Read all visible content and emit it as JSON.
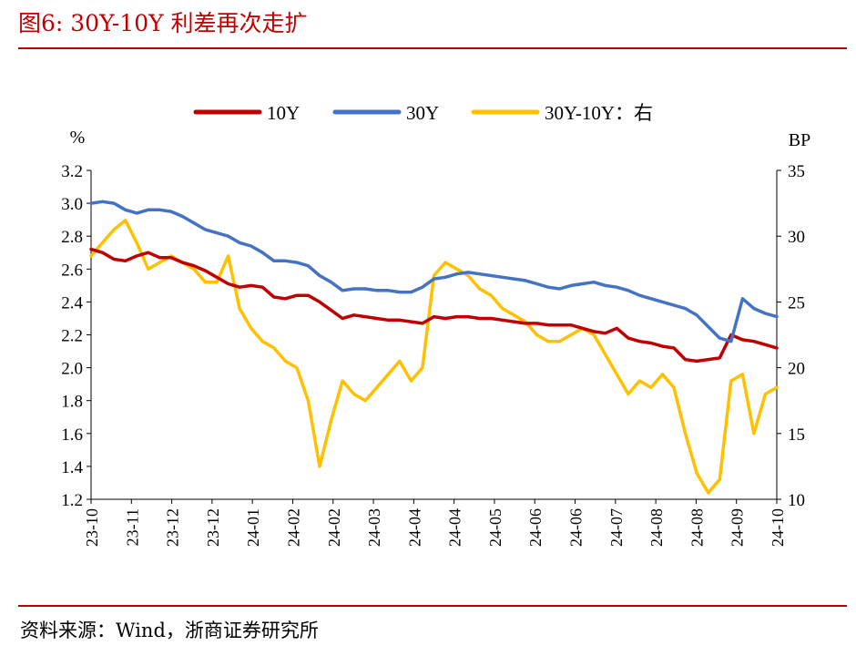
{
  "header": {
    "title": "图6:   30Y-10Y 利差再次走扩"
  },
  "footer": {
    "source": "资料来源：Wind，浙商证券研究所"
  },
  "chart_data": {
    "type": "line",
    "left_unit": "%",
    "right_unit": "BP",
    "legend": [
      "10Y",
      "30Y",
      "30Y-10Y：右"
    ],
    "legend_position": "top",
    "colors": {
      "10Y": "#c00000",
      "30Y": "#4472c4",
      "spread": "#ffc000",
      "accent": "#c00000"
    },
    "x_tick_labels": [
      "23-10",
      "23-11",
      "23-12",
      "23-12",
      "24-01",
      "24-02",
      "24-02",
      "24-03",
      "24-04",
      "24-04",
      "24-05",
      "24-06",
      "24-06",
      "24-07",
      "24-08",
      "24-08",
      "24-09",
      "24-10"
    ],
    "y_left": {
      "min": 1.2,
      "max": 3.2,
      "ticks": [
        "1.2",
        "1.4",
        "1.6",
        "1.8",
        "2.0",
        "2.2",
        "2.4",
        "2.6",
        "2.8",
        "3.0",
        "3.2"
      ]
    },
    "y_right": {
      "min": 10,
      "max": 35,
      "ticks": [
        "10",
        "15",
        "20",
        "25",
        "30",
        "35"
      ]
    },
    "grid": false,
    "series": [
      {
        "name": "10Y",
        "axis": "left",
        "values": [
          2.72,
          2.7,
          2.66,
          2.65,
          2.68,
          2.7,
          2.67,
          2.67,
          2.64,
          2.62,
          2.59,
          2.55,
          2.51,
          2.49,
          2.5,
          2.49,
          2.43,
          2.42,
          2.44,
          2.44,
          2.4,
          2.35,
          2.3,
          2.32,
          2.31,
          2.3,
          2.29,
          2.29,
          2.28,
          2.27,
          2.31,
          2.3,
          2.31,
          2.31,
          2.3,
          2.3,
          2.29,
          2.28,
          2.27,
          2.27,
          2.26,
          2.26,
          2.26,
          2.24,
          2.22,
          2.21,
          2.24,
          2.18,
          2.16,
          2.15,
          2.13,
          2.12,
          2.05,
          2.04,
          2.05,
          2.06,
          2.2,
          2.17,
          2.16,
          2.14,
          2.12
        ]
      },
      {
        "name": "30Y",
        "axis": "left",
        "values": [
          3.0,
          3.01,
          3.0,
          2.96,
          2.94,
          2.96,
          2.96,
          2.95,
          2.92,
          2.88,
          2.84,
          2.82,
          2.8,
          2.76,
          2.74,
          2.7,
          2.65,
          2.65,
          2.64,
          2.62,
          2.56,
          2.52,
          2.47,
          2.48,
          2.48,
          2.47,
          2.47,
          2.46,
          2.46,
          2.49,
          2.54,
          2.55,
          2.57,
          2.58,
          2.57,
          2.56,
          2.55,
          2.54,
          2.53,
          2.51,
          2.49,
          2.48,
          2.5,
          2.51,
          2.52,
          2.5,
          2.49,
          2.47,
          2.44,
          2.42,
          2.4,
          2.38,
          2.36,
          2.32,
          2.25,
          2.18,
          2.16,
          2.42,
          2.36,
          2.33,
          2.31
        ]
      },
      {
        "name": "30Y-10Y：右",
        "axis": "right",
        "values": [
          28.5,
          29.5,
          30.5,
          31.2,
          29.5,
          27.5,
          28.0,
          28.5,
          28.0,
          27.5,
          26.5,
          26.5,
          28.5,
          24.5,
          23.0,
          22.0,
          21.5,
          20.5,
          20.0,
          17.5,
          12.5,
          16.0,
          19.0,
          18.0,
          17.5,
          18.5,
          19.5,
          20.5,
          19.0,
          20.0,
          27.0,
          28.0,
          27.5,
          27.0,
          26.0,
          25.5,
          24.5,
          24.0,
          23.5,
          22.5,
          22.0,
          22.0,
          22.5,
          23.0,
          22.5,
          21.0,
          19.5,
          18.0,
          19.0,
          18.5,
          19.5,
          18.5,
          15.0,
          12.0,
          10.5,
          11.5,
          19.0,
          19.5,
          15.0,
          18.0,
          18.5
        ]
      }
    ]
  }
}
